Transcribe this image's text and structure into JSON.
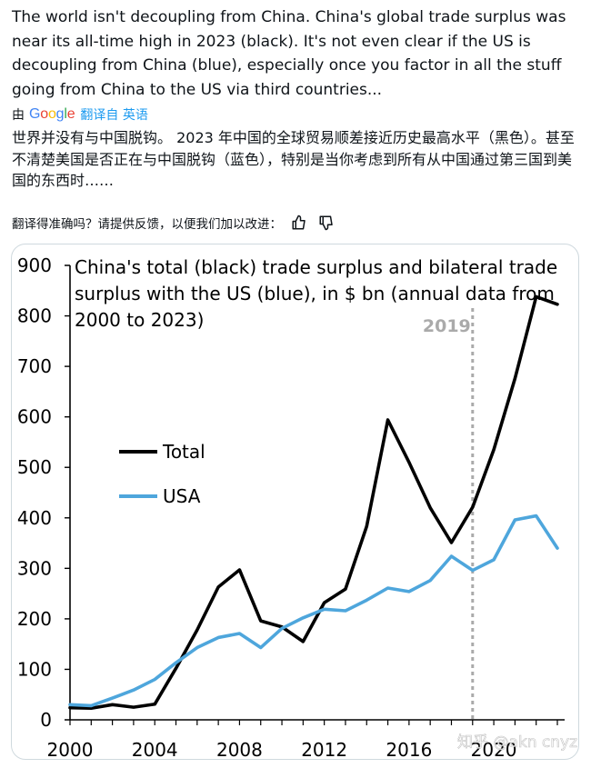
{
  "tweet": {
    "text": "The world isn't decoupling from China. China's global trade surplus was near its all-time high in 2023 (black). It's not even clear if the US is decoupling from China (blue), especially once you factor in all the stuff going from China to the US via third countries...",
    "translated_by_label": "由",
    "translated_by_logo": [
      "G",
      "o",
      "o",
      "g",
      "l",
      "e"
    ],
    "translated_by_logo_colors": [
      "#4285F4",
      "#EA4335",
      "#FBBC05",
      "#4285F4",
      "#34A853",
      "#EA4335"
    ],
    "translated_from_label": "翻译自 英语",
    "translation": "世界并没有与中国脱钩。 2023 年中国的全球贸易顺差接近历史最高水平（黑色）。甚至不清楚美国是否正在与中国脱钩（蓝色），特别是当你考虑到所有从中国通过第三国到美国的东西时……",
    "feedback_prompt": "翻译得准确吗？请提供反馈，以便我们加以改进：",
    "feedback_icons": [
      "thumbs-up-icon",
      "thumbs-down-icon"
    ]
  },
  "watermark": "知乎 @akn cnyz",
  "chart_data": {
    "type": "line",
    "title": "China's total (black) trade surplus and bilateral trade surplus with the US (blue), in $ bn (annual data from 2000 to 2023)",
    "title_lines": [
      "China's total (black) trade surplus and bilateral trade",
      "surplus with the US (blue), in $ bn (annual data from",
      "2000 to 2023)"
    ],
    "x": [
      2000,
      2001,
      2002,
      2003,
      2004,
      2005,
      2006,
      2007,
      2008,
      2009,
      2010,
      2011,
      2012,
      2013,
      2014,
      2015,
      2016,
      2017,
      2018,
      2019,
      2020,
      2021,
      2022,
      2023
    ],
    "series": [
      {
        "name": "Total",
        "color": "#000000",
        "values": [
          24,
          23,
          30,
          25,
          31,
          102,
          178,
          263,
          297,
          196,
          184,
          155,
          232,
          259,
          383,
          594,
          510,
          420,
          351,
          421,
          535,
          676,
          838,
          823
        ]
      },
      {
        "name": "USA",
        "color": "#4ea6dc",
        "values": [
          30,
          28,
          43,
          59,
          80,
          113,
          143,
          163,
          171,
          143,
          181,
          202,
          219,
          216,
          237,
          261,
          254,
          276,
          324,
          296,
          317,
          396,
          404,
          340
        ]
      }
    ],
    "xticks": [
      2000,
      2004,
      2008,
      2012,
      2016,
      2020
    ],
    "xtick_labels": [
      "2000",
      "2004",
      "2008",
      "2012",
      "2016",
      "2020"
    ],
    "yticks": [
      0,
      100,
      200,
      300,
      400,
      500,
      600,
      700,
      800,
      900
    ],
    "ytick_labels": [
      "0",
      "100",
      "200",
      "300",
      "400",
      "500",
      "600",
      "700",
      "800",
      "900"
    ],
    "ylim": [
      0,
      900
    ],
    "xlim": [
      2000,
      2023
    ],
    "vline": {
      "x": 2019,
      "label": "2019",
      "color": "#aaaaaa"
    },
    "legend_position": "left-middle",
    "grid": false
  }
}
